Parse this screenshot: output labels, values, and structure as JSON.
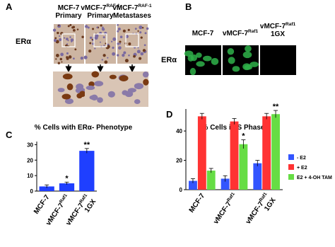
{
  "panel_a": {
    "label": "A",
    "row_label": "ERα",
    "columns": [
      {
        "text": "MCF-7",
        "line2": "Primary"
      },
      {
        "text": "vMCF-7",
        "sup": "RAF-1",
        "line2": "Primary"
      },
      {
        "text": "vMCF-7",
        "sup": "RAF-1",
        "line2": "Metastases"
      }
    ]
  },
  "panel_b": {
    "label": "B",
    "row_label": "ERα",
    "columns": [
      {
        "text": "MCF-7"
      },
      {
        "text": "vMCF-7",
        "sup": "Raf1"
      },
      {
        "text": "vMCF-7",
        "sup": "Raf1",
        "line2": "1GX"
      }
    ]
  },
  "chart_data": [
    {
      "panel_label": "C",
      "type": "bar",
      "title": "% Cells with ERα- Phenotype",
      "categories": [
        {
          "text": "MCF-7"
        },
        {
          "text": "vMCF-7",
          "sup": "Raf1"
        },
        {
          "text": "vMCF-7",
          "sup": "Raf1",
          "line2": "1GX"
        }
      ],
      "series": [
        {
          "color": "#1f3fff",
          "values": [
            3,
            5,
            26
          ],
          "errors": [
            1,
            0.8,
            1.5
          ],
          "annotations": [
            null,
            "*",
            "**"
          ]
        }
      ],
      "ylim": [
        0,
        32
      ],
      "yticks": [
        0,
        10,
        20,
        30
      ]
    },
    {
      "panel_label": "D",
      "type": "bar",
      "title": "% Cells in S Phase",
      "categories": [
        {
          "text": "MCF-7"
        },
        {
          "text": "vMCF-7",
          "sup": "Raf1"
        },
        {
          "text": "vMCF-7",
          "sup": "Raf1",
          "line2": "1GX"
        }
      ],
      "series": [
        {
          "name": "- E2",
          "color": "#3355ff",
          "values": [
            6,
            7.5,
            18
          ],
          "errors": [
            1.5,
            2,
            2
          ],
          "annotations": [
            null,
            null,
            null
          ]
        },
        {
          "name": "+ E2",
          "color": "#ff3333",
          "values": [
            50,
            46.5,
            50
          ],
          "errors": [
            2,
            2,
            2
          ],
          "annotations": [
            null,
            null,
            null
          ]
        },
        {
          "name": "E2 + 4-OH TAM",
          "color": "#66dd44",
          "values": [
            13,
            31,
            51.5
          ],
          "errors": [
            1.5,
            3,
            2.5
          ],
          "annotations": [
            null,
            "*",
            "**"
          ]
        }
      ],
      "ylim": [
        0,
        55
      ],
      "yticks": [
        0,
        20,
        40
      ],
      "legend": "right"
    }
  ]
}
